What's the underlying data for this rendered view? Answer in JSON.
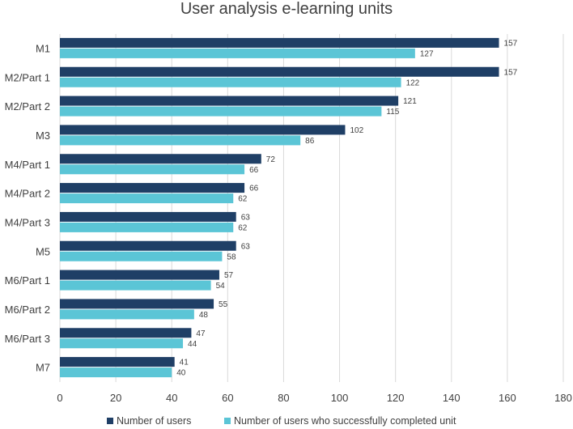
{
  "chart_data": {
    "type": "bar",
    "orientation": "horizontal",
    "title": "User analysis e-learning units",
    "xlabel": "",
    "ylabel": "",
    "categories": [
      "M1",
      "M2/Part 1",
      "M2/Part 2",
      "M3",
      "M4/Part 1",
      "M4/Part 2",
      "M4/Part 3",
      "M5",
      "M6/Part 1",
      "M6/Part 2",
      "M6/Part 3",
      "M7"
    ],
    "series": [
      {
        "name": "Number of users",
        "color": "#1f3f66",
        "values": [
          157,
          157,
          121,
          102,
          72,
          66,
          63,
          63,
          57,
          55,
          47,
          41
        ]
      },
      {
        "name": "Number of users who successfully completed unit",
        "color": "#5bc5d6",
        "values": [
          127,
          122,
          115,
          86,
          66,
          62,
          62,
          58,
          54,
          48,
          44,
          40
        ]
      }
    ],
    "xlim": [
      0,
      180
    ],
    "xticks": [
      0,
      20,
      40,
      60,
      80,
      100,
      120,
      140,
      160,
      180
    ],
    "grid": true,
    "legend_position": "bottom",
    "data_labels": true
  }
}
